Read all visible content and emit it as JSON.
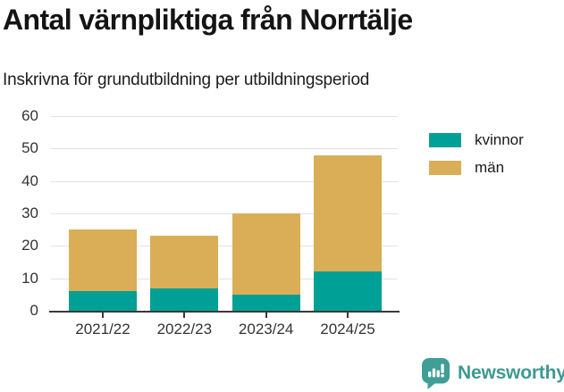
{
  "header": {
    "title": "Antal värnpliktiga från Norrtälje",
    "subtitle": "Inskrivna för grundutbildning per utbildningsperiod"
  },
  "chart_data": {
    "type": "bar",
    "stacked": true,
    "title": "Antal värnpliktiga från Norrtälje",
    "subtitle": "Inskrivna för grundutbildning per utbildningsperiod",
    "categories": [
      "2021/22",
      "2022/23",
      "2023/24",
      "2024/25"
    ],
    "series": [
      {
        "name": "kvinnor",
        "color": "#00a096",
        "values": [
          6,
          7,
          5,
          12
        ]
      },
      {
        "name": "män",
        "color": "#d9ae57",
        "values": [
          19,
          16,
          25,
          36
        ]
      }
    ],
    "stack_totals": [
      25,
      23,
      30,
      48
    ],
    "xlabel": "",
    "ylabel": "",
    "ylim": [
      0,
      60
    ],
    "yticks": [
      0,
      10,
      20,
      30,
      40,
      50,
      60
    ],
    "grid": "horizontal",
    "legend_position": "right"
  },
  "colors": {
    "grid": "#e2e2e2",
    "axis": "#3a3a3a",
    "tick_label": "#333333"
  },
  "footer": {
    "brand": "Newsworthy",
    "logo_color": "#3f9e96",
    "text_color": "#3e9992"
  }
}
